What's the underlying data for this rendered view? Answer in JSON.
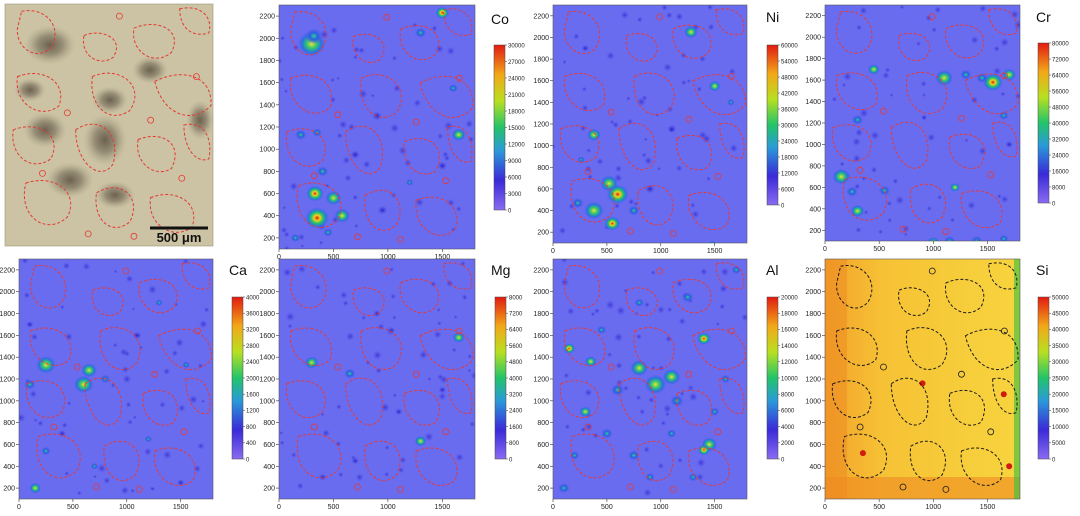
{
  "photo": {
    "scale_label": "500 μm"
  },
  "colors": {
    "outline_red": "#e53935",
    "outline_black": "#1a1a1a",
    "map_base": "#6a6cf0",
    "photo_bg": "#cbc3a3"
  },
  "chart_data": [
    {
      "type": "heatmap",
      "element": "Co",
      "colorbar_ticks": [
        0,
        3000,
        6000,
        9000,
        12000,
        15000,
        18000,
        21000,
        24000,
        27000,
        30000
      ],
      "x_ticks": [
        500,
        1000,
        1500
      ],
      "y_ticks": [
        200,
        400,
        600,
        800,
        1000,
        1200,
        1400,
        1600,
        1800,
        2000,
        2200
      ],
      "xlim": [
        0,
        1800
      ],
      "ylim": [
        100,
        2300
      ]
    },
    {
      "type": "heatmap",
      "element": "Ni",
      "colorbar_ticks": [
        0,
        6000,
        12000,
        18000,
        24000,
        30000,
        36000,
        42000,
        48000,
        54000,
        60000
      ],
      "x_ticks": [
        500,
        1000,
        1500
      ],
      "y_ticks": [
        200,
        400,
        600,
        800,
        1000,
        1200,
        1400,
        1600,
        1800,
        2000,
        2200
      ],
      "xlim": [
        0,
        1800
      ],
      "ylim": [
        100,
        2300
      ]
    },
    {
      "type": "heatmap",
      "element": "Cr",
      "colorbar_ticks": [
        0,
        8000,
        16000,
        24000,
        32000,
        40000,
        48000,
        56000,
        64000,
        72000,
        80000
      ],
      "x_ticks": [
        500,
        1000,
        1500
      ],
      "y_ticks": [
        200,
        400,
        600,
        800,
        1000,
        1200,
        1400,
        1600,
        1800,
        2000,
        2200
      ],
      "xlim": [
        0,
        1800
      ],
      "ylim": [
        100,
        2300
      ]
    },
    {
      "type": "heatmap",
      "element": "Ca",
      "colorbar_ticks": [
        0,
        400,
        800,
        1200,
        1600,
        2000,
        2400,
        2800,
        3200,
        3600,
        4000
      ],
      "x_ticks": [
        500,
        1000,
        1500
      ],
      "y_ticks": [
        200,
        400,
        600,
        800,
        1000,
        1200,
        1400,
        1600,
        1800,
        2000,
        2200
      ],
      "xlim": [
        0,
        1800
      ],
      "ylim": [
        100,
        2300
      ]
    },
    {
      "type": "heatmap",
      "element": "Mg",
      "colorbar_ticks": [
        0,
        800,
        1600,
        2400,
        3200,
        4000,
        4800,
        5600,
        6400,
        7200,
        8000
      ],
      "x_ticks": [
        500,
        1000,
        1500
      ],
      "y_ticks": [
        200,
        400,
        600,
        800,
        1000,
        1200,
        1400,
        1600,
        1800,
        2000,
        2200
      ],
      "xlim": [
        0,
        1800
      ],
      "ylim": [
        100,
        2300
      ]
    },
    {
      "type": "heatmap",
      "element": "Al",
      "colorbar_ticks": [
        0,
        2000,
        4000,
        6000,
        8000,
        10000,
        12000,
        14000,
        16000,
        18000,
        20000
      ],
      "x_ticks": [
        500,
        1000,
        1500
      ],
      "y_ticks": [
        200,
        400,
        600,
        800,
        1000,
        1200,
        1400,
        1600,
        1800,
        2000,
        2200
      ],
      "xlim": [
        0,
        1800
      ],
      "ylim": [
        100,
        2300
      ]
    },
    {
      "type": "heatmap",
      "element": "Si",
      "colorbar_ticks": [
        0,
        5000,
        10000,
        15000,
        20000,
        25000,
        30000,
        35000,
        40000,
        45000,
        50000
      ],
      "x_ticks": [
        500,
        1000,
        1500
      ],
      "y_ticks": [
        200,
        400,
        600,
        800,
        1000,
        1200,
        1400,
        1600,
        1800,
        2000,
        2200
      ],
      "xlim": [
        0,
        1800
      ],
      "ylim": [
        100,
        2300
      ]
    }
  ]
}
